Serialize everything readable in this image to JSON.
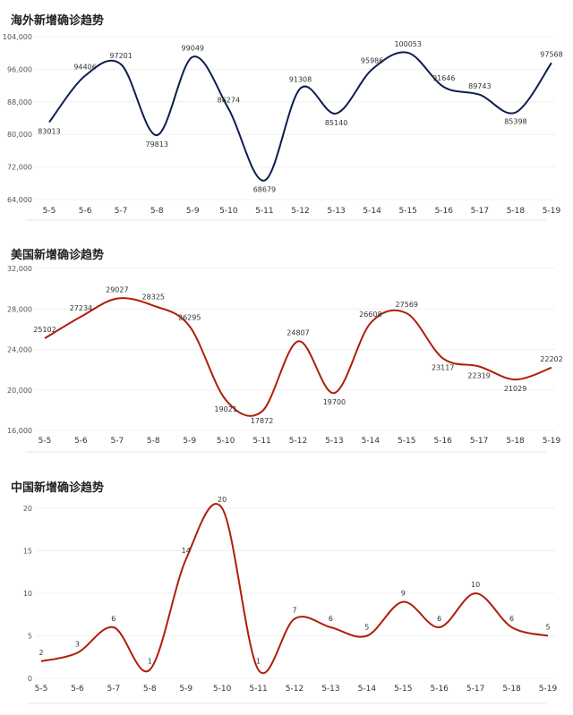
{
  "chart_data": [
    {
      "type": "line",
      "title": "海外新增确诊趋势",
      "categories": [
        "5-5",
        "5-6",
        "5-7",
        "5-8",
        "5-9",
        "5-10",
        "5-11",
        "5-12",
        "5-13",
        "5-14",
        "5-15",
        "5-16",
        "5-17",
        "5-18",
        "5-19"
      ],
      "series": [
        {
          "values": [
            83013,
            94406,
            97201,
            79813,
            99049,
            86274,
            68679,
            91308,
            85140,
            95986,
            100053,
            91646,
            89743,
            85398,
            97568
          ]
        }
      ],
      "ylim": [
        64000,
        104000
      ],
      "yticks": [
        "64,000",
        "72,000",
        "80,000",
        "88,000",
        "96,000",
        "104,000"
      ],
      "data_labels": [
        "83013",
        "94406",
        "97201",
        "79813",
        "99049",
        "86274",
        "68679",
        "91308",
        "85140",
        "95986",
        "100053",
        "91646",
        "89743",
        "85398",
        "97568"
      ],
      "color": "#0d1f4e",
      "grid": true,
      "xlabel": "",
      "ylabel": ""
    },
    {
      "type": "line",
      "title": "美国新增确诊趋势",
      "categories": [
        "5-5",
        "5-6",
        "5-7",
        "5-8",
        "5-9",
        "5-10",
        "5-11",
        "5-12",
        "5-13",
        "5-14",
        "5-15",
        "5-16",
        "5-17",
        "5-18",
        "5-19"
      ],
      "series": [
        {
          "values": [
            25102,
            27234,
            29027,
            28325,
            26295,
            19021,
            17872,
            24807,
            19700,
            26608,
            27569,
            23117,
            22319,
            21029,
            22202
          ]
        }
      ],
      "ylim": [
        16000,
        32000
      ],
      "yticks": [
        "16,000",
        "20,000",
        "24,000",
        "28,000",
        "32,000"
      ],
      "data_labels": [
        "25102",
        "27234",
        "29027",
        "28325",
        "26295",
        "19021",
        "17872",
        "24807",
        "19700",
        "26608",
        "27569",
        "23117",
        "22319",
        "21029",
        "22202"
      ],
      "color": "#b01e0a",
      "grid": true,
      "xlabel": "",
      "ylabel": ""
    },
    {
      "type": "line",
      "title": "中国新增确诊趋势",
      "categories": [
        "5-5",
        "5-6",
        "5-7",
        "5-8",
        "5-9",
        "5-10",
        "5-11",
        "5-12",
        "5-13",
        "5-14",
        "5-15",
        "5-16",
        "5-17",
        "5-18",
        "5-19"
      ],
      "series": [
        {
          "values": [
            2,
            3,
            6,
            1,
            14,
            20,
            1,
            7,
            6,
            5,
            9,
            6,
            10,
            6,
            5
          ]
        }
      ],
      "ylim": [
        0,
        20
      ],
      "yticks": [
        "0",
        "5",
        "10",
        "15",
        "20"
      ],
      "data_labels": [
        "2",
        "3",
        "6",
        "1",
        "14",
        "20",
        "1",
        "7",
        "6",
        "5",
        "9",
        "6",
        "10",
        "6",
        "5"
      ],
      "color": "#b01e0a",
      "grid": true,
      "xlabel": "",
      "ylabel": ""
    }
  ]
}
